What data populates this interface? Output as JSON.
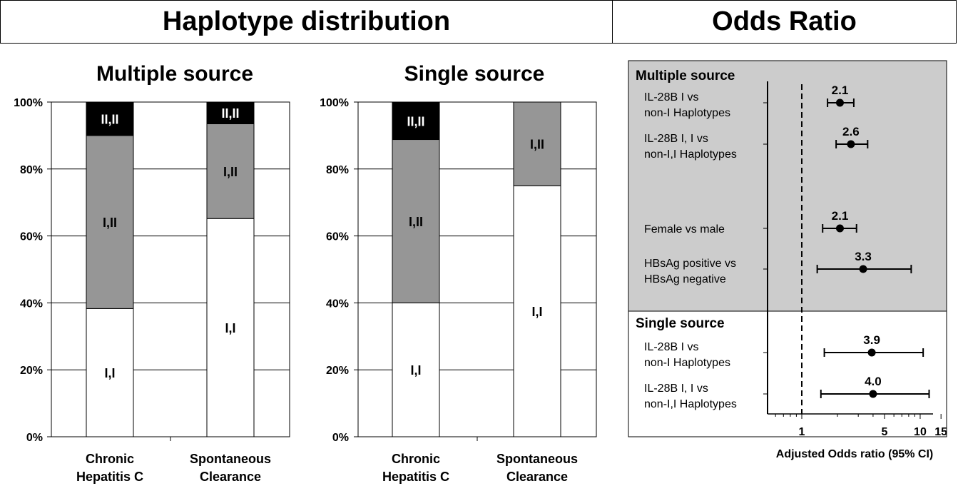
{
  "header": {
    "left_title": "Haplotype distribution",
    "right_title": "Odds Ratio"
  },
  "chart_data": [
    {
      "type": "bar",
      "stacked": true,
      "title": "Multiple source",
      "categories": [
        "Chronic Hepatitis C",
        "Spontaneous Clearance"
      ],
      "category_lines": [
        [
          "Chronic",
          "Hepatitis C"
        ],
        [
          "Spontaneous",
          "Clearance"
        ]
      ],
      "series": [
        {
          "name": "I,I",
          "values": [
            38.3,
            65.2
          ],
          "color": "#ffffff"
        },
        {
          "name": "I,II",
          "values": [
            51.7,
            28.3
          ],
          "color": "#969696"
        },
        {
          "name": "II,II",
          "values": [
            10.0,
            6.5
          ],
          "color": "#000000"
        }
      ],
      "ylim": [
        0,
        100
      ],
      "yticks": [
        "0%",
        "20%",
        "40%",
        "60%",
        "80%",
        "100%"
      ],
      "grid": true
    },
    {
      "type": "bar",
      "stacked": true,
      "title": "Single source",
      "categories": [
        "Chronic Hepatitis C",
        "Spontaneous Clearance"
      ],
      "category_lines": [
        [
          "Chronic",
          "Hepatitis C"
        ],
        [
          "Spontaneous",
          "Clearance"
        ]
      ],
      "series": [
        {
          "name": "I,I",
          "values": [
            40.0,
            75.0
          ],
          "color": "#ffffff"
        },
        {
          "name": "I,II",
          "values": [
            48.8,
            25.0
          ],
          "color": "#969696"
        },
        {
          "name": "II,II",
          "values": [
            11.2,
            0
          ],
          "color": "#000000"
        }
      ],
      "ylim": [
        0,
        100
      ],
      "yticks": [
        "0%",
        "20%",
        "40%",
        "60%",
        "80%",
        "100%"
      ],
      "grid": true
    },
    {
      "type": "scatter",
      "subtype": "forest",
      "xlabel": "Adjusted Odds ratio (95% CI)",
      "xscale": "log",
      "xlim": [
        0.5,
        17
      ],
      "xticks": [
        {
          "value": 1,
          "label": "1"
        },
        {
          "value": 5,
          "label": "5"
        },
        {
          "value": 10,
          "label": "10"
        },
        {
          "value": 15,
          "label": "15"
        }
      ],
      "reference_line": 1,
      "groups": [
        {
          "name": "Multiple source",
          "background": "#cccccc",
          "rows": [
            {
              "label_lines": [
                "IL-28B I vs",
                "non-I Haplotypes"
              ],
              "or": 2.1,
              "ci": [
                1.65,
                2.75
              ],
              "value_label": "2.1"
            },
            {
              "label_lines": [
                "IL-28B I, I vs",
                "non-I,I Haplotypes"
              ],
              "or": 2.6,
              "ci": [
                1.95,
                3.6
              ],
              "value_label": "2.6"
            },
            {
              "label_lines": [
                "Female vs male"
              ],
              "or": 2.1,
              "ci": [
                1.5,
                2.9
              ],
              "value_label": "2.1"
            },
            {
              "label_lines": [
                "HBsAg positive vs",
                "HBsAg negative"
              ],
              "or": 3.3,
              "ci": [
                1.35,
                8.4
              ],
              "value_label": "3.3"
            }
          ]
        },
        {
          "name": "Single source",
          "background": "#ffffff",
          "rows": [
            {
              "label_lines": [
                "IL-28B I vs",
                "non-I Haplotypes"
              ],
              "or": 3.9,
              "ci": [
                1.55,
                10.6
              ],
              "value_label": "3.9"
            },
            {
              "label_lines": [
                "IL-28B I, I vs",
                "non-I,I Haplotypes"
              ],
              "or": 4.0,
              "ci": [
                1.45,
                11.9
              ],
              "value_label": "4.0"
            }
          ]
        }
      ]
    }
  ]
}
